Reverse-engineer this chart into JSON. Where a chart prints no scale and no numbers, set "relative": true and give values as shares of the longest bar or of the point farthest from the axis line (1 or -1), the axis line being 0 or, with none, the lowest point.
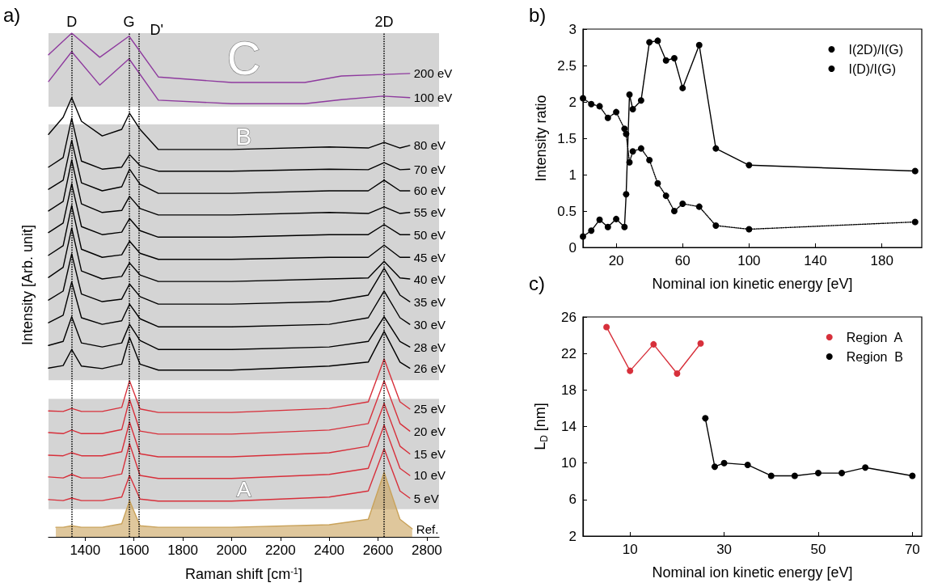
{
  "chart_data": [
    {
      "type": "line",
      "xlabel": "Raman shift [cm$^{-1}$]",
      "ylabel": "Intensity [Arb. unit]",
      "annotations": [
        "a)"
      ],
      "relative": true,
      "legend": false,
      "marker": "none",
      "grid": false,
      "xlim": [
        1250,
        2850
      ],
      "xticks": [
        1400,
        1600,
        1800,
        2000,
        2200,
        2400,
        2600,
        2800
      ],
      "x": [
        1250,
        1310,
        1345,
        1385,
        1470,
        1550,
        1582,
        1625,
        1700,
        2000,
        2400,
        2560,
        2625,
        2690,
        2730
      ],
      "bands": [
        {
          "axis": "y",
          "from": 0.854,
          "to": 1.0,
          "label": "C",
          "color": "#d4d4d4"
        },
        {
          "axis": "y",
          "from": 0.311,
          "to": 0.819,
          "label": "B",
          "color": "#d4d4d4"
        },
        {
          "axis": "y",
          "from": 0.055,
          "to": 0.274,
          "label": "A",
          "color": "#d4d4d4"
        }
      ],
      "ref_lines": [
        {
          "axis": "x",
          "value": 1345,
          "label": "D",
          "line_style": "dotted",
          "color": "#000000"
        },
        {
          "axis": "x",
          "value": 1580,
          "label": "G",
          "line_style": "dotted",
          "color": "#000000"
        },
        {
          "axis": "x",
          "value": 1620,
          "label": "D'",
          "line_style": "dotted",
          "color": "#000000"
        },
        {
          "axis": "x",
          "value": 2625,
          "label": "2D",
          "line_style": "dotted",
          "color": "#000000"
        }
      ],
      "series": [
        {
          "name": "200 eV",
          "color": "#8e3a9e",
          "x": [
            1250,
            1345,
            1460,
            1580,
            1700,
            2000,
            2300,
            2450,
            2620,
            2730
          ],
          "values": [
            0.957,
            1.0,
            0.952,
            0.994,
            0.913,
            0.902,
            0.902,
            0.915,
            0.918,
            0.92
          ]
        },
        {
          "name": "100 eV",
          "color": "#8e3a9e",
          "x": [
            1250,
            1345,
            1460,
            1580,
            1700,
            2000,
            2300,
            2450,
            2620,
            2730
          ],
          "values": [
            0.904,
            0.963,
            0.897,
            0.949,
            0.867,
            0.86,
            0.86,
            0.868,
            0.875,
            0.872
          ]
        },
        {
          "name": "80 eV",
          "color": "#000000",
          "values": [
            0.799,
            0.833,
            0.872,
            0.825,
            0.796,
            0.809,
            0.841,
            0.809,
            0.769,
            0.769,
            0.774,
            0.772,
            0.783,
            0.772,
            0.777
          ]
        },
        {
          "name": "70 eV",
          "color": "#000000",
          "values": [
            0.734,
            0.753,
            0.831,
            0.746,
            0.73,
            0.734,
            0.759,
            0.737,
            0.726,
            0.726,
            0.73,
            0.729,
            0.743,
            0.729,
            0.73
          ]
        },
        {
          "name": "60 eV",
          "color": "#000000",
          "values": [
            0.69,
            0.708,
            0.787,
            0.703,
            0.687,
            0.695,
            0.73,
            0.7,
            0.682,
            0.682,
            0.687,
            0.687,
            0.708,
            0.687,
            0.687
          ]
        },
        {
          "name": "55 eV",
          "color": "#000000",
          "values": [
            0.647,
            0.666,
            0.748,
            0.661,
            0.644,
            0.648,
            0.676,
            0.652,
            0.639,
            0.639,
            0.644,
            0.642,
            0.655,
            0.642,
            0.644
          ]
        },
        {
          "name": "50 eV",
          "color": "#000000",
          "values": [
            0.604,
            0.623,
            0.701,
            0.616,
            0.6,
            0.605,
            0.632,
            0.608,
            0.595,
            0.595,
            0.6,
            0.6,
            0.62,
            0.6,
            0.6
          ]
        },
        {
          "name": "45 eV",
          "color": "#000000",
          "values": [
            0.559,
            0.578,
            0.658,
            0.571,
            0.555,
            0.56,
            0.587,
            0.563,
            0.551,
            0.551,
            0.555,
            0.555,
            0.579,
            0.555,
            0.555
          ]
        },
        {
          "name": "40 eV",
          "color": "#000000",
          "values": [
            0.515,
            0.535,
            0.613,
            0.528,
            0.512,
            0.517,
            0.544,
            0.52,
            0.507,
            0.507,
            0.512,
            0.514,
            0.547,
            0.514,
            0.512
          ]
        },
        {
          "name": "35 eV",
          "color": "#000000",
          "values": [
            0.47,
            0.488,
            0.562,
            0.482,
            0.467,
            0.472,
            0.502,
            0.477,
            0.462,
            0.462,
            0.467,
            0.48,
            0.533,
            0.48,
            0.467
          ]
        },
        {
          "name": "30 eV",
          "color": "#000000",
          "values": [
            0.425,
            0.44,
            0.506,
            0.435,
            0.422,
            0.429,
            0.462,
            0.433,
            0.417,
            0.417,
            0.422,
            0.435,
            0.488,
            0.435,
            0.422
          ]
        },
        {
          "name": "28 eV",
          "color": "#000000",
          "values": [
            0.38,
            0.388,
            0.437,
            0.385,
            0.377,
            0.385,
            0.422,
            0.39,
            0.372,
            0.372,
            0.377,
            0.388,
            0.437,
            0.388,
            0.377
          ]
        },
        {
          "name": "26 eV",
          "color": "#000000",
          "values": [
            0.335,
            0.34,
            0.372,
            0.339,
            0.334,
            0.343,
            0.396,
            0.343,
            0.331,
            0.331,
            0.339,
            0.347,
            0.408,
            0.347,
            0.335
          ]
        },
        {
          "name": "25 eV",
          "color": "#d7303b",
          "values": [
            0.25,
            0.249,
            0.255,
            0.249,
            0.249,
            0.257,
            0.31,
            0.254,
            0.247,
            0.247,
            0.255,
            0.268,
            0.353,
            0.268,
            0.254
          ]
        },
        {
          "name": "20 eV",
          "color": "#d7303b",
          "values": [
            0.207,
            0.205,
            0.212,
            0.205,
            0.205,
            0.213,
            0.273,
            0.21,
            0.204,
            0.204,
            0.212,
            0.225,
            0.31,
            0.225,
            0.21
          ]
        },
        {
          "name": "15 eV",
          "color": "#d7303b",
          "values": [
            0.162,
            0.161,
            0.167,
            0.161,
            0.161,
            0.169,
            0.228,
            0.165,
            0.159,
            0.159,
            0.167,
            0.18,
            0.265,
            0.18,
            0.165
          ]
        },
        {
          "name": "10 eV",
          "color": "#d7303b",
          "values": [
            0.119,
            0.117,
            0.124,
            0.117,
            0.117,
            0.125,
            0.185,
            0.122,
            0.116,
            0.116,
            0.124,
            0.136,
            0.222,
            0.136,
            0.122
          ]
        },
        {
          "name": "5 eV",
          "color": "#d7303b",
          "values": [
            0.074,
            0.072,
            0.077,
            0.072,
            0.072,
            0.079,
            0.122,
            0.075,
            0.071,
            0.071,
            0.079,
            0.091,
            0.175,
            0.091,
            0.077
          ]
        },
        {
          "name": "Ref.",
          "color": "#c9a25a",
          "type": "area",
          "x": [
            1280,
            1310,
            1345,
            1385,
            1470,
            1550,
            1582,
            1625,
            1700,
            2000,
            2400,
            2560,
            2625,
            2690,
            2740
          ],
          "values": [
            0.019,
            0.019,
            0.022,
            0.019,
            0.019,
            0.026,
            0.072,
            0.022,
            0.019,
            0.019,
            0.024,
            0.035,
            0.128,
            0.035,
            0.016
          ]
        }
      ]
    },
    {
      "type": "line",
      "xlabel": "Nominal ion kinetic energy [eV]",
      "ylabel": "Intensity ratio",
      "annotations": [
        "b)"
      ],
      "legend": "top right",
      "grid": false,
      "marker": "circle",
      "xlim": [
        0,
        204
      ],
      "xticks": [
        20,
        60,
        100,
        140,
        180
      ],
      "ylim": [
        0,
        3
      ],
      "yticks": [
        0,
        0.5,
        1,
        1.5,
        2,
        2.5,
        3
      ],
      "x": [
        0,
        5,
        10,
        15,
        20,
        25,
        26,
        28,
        30,
        35,
        40,
        45,
        50,
        55,
        60,
        70,
        80,
        100,
        200
      ],
      "series": [
        {
          "name": "I(2D)/I(G)",
          "color": "#000000",
          "line_style": "dotted",
          "values": [
            2.05,
            1.97,
            1.94,
            1.78,
            1.86,
            1.63,
            1.56,
            1.17,
            1.32,
            1.36,
            1.2,
            0.88,
            0.71,
            0.5,
            0.6,
            0.56,
            0.3,
            0.25,
            0.35
          ]
        },
        {
          "name": "I(D)/I(G)",
          "color": "#000000",
          "line_style": "solid",
          "values": [
            0.15,
            0.23,
            0.38,
            0.28,
            0.39,
            0.28,
            0.73,
            2.1,
            1.9,
            2.02,
            2.82,
            2.84,
            2.57,
            2.6,
            2.19,
            2.78,
            1.36,
            1.13,
            1.05
          ]
        }
      ]
    },
    {
      "type": "line",
      "xlabel": "Nominal ion kinetic energy [eV]",
      "ylabel": "L$_{D}$ [nm]",
      "annotations": [
        "c)"
      ],
      "legend": "top right",
      "grid": false,
      "marker": "circle",
      "line_style": "solid",
      "xlim": [
        0,
        72
      ],
      "xticks": [
        10,
        30,
        50,
        70
      ],
      "ylim": [
        2,
        26
      ],
      "yticks": [
        2,
        6,
        10,
        14,
        18,
        22,
        26
      ],
      "series": [
        {
          "name": "Region  A",
          "color": "#d7303b",
          "x": [
            5,
            10,
            15,
            20,
            25
          ],
          "values": [
            24.9,
            20.1,
            23.0,
            19.8,
            23.1
          ]
        },
        {
          "name": "Region  B",
          "color": "#000000",
          "x": [
            26,
            28,
            30,
            35,
            40,
            45,
            50,
            55,
            60,
            70
          ],
          "values": [
            14.9,
            9.6,
            10.0,
            9.8,
            8.6,
            8.6,
            8.9,
            8.9,
            9.5,
            8.6
          ]
        }
      ]
    }
  ]
}
